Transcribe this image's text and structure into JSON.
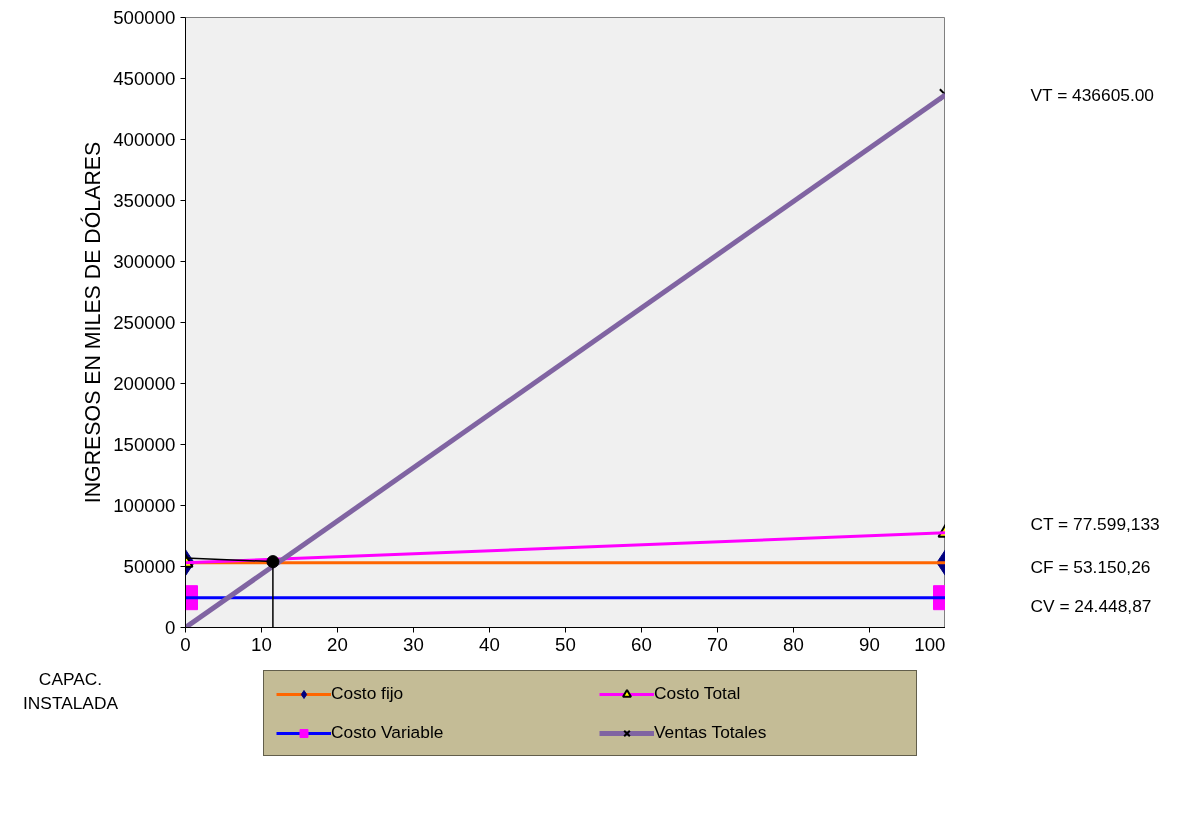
{
  "chart_data": {
    "type": "line",
    "xlabel": "CAPAC. INSTALADA",
    "ylabel": "INGRESOS EN MILES DE DÓLARES",
    "xlim": [
      0,
      100
    ],
    "xticks": [
      0,
      10,
      20,
      30,
      40,
      50,
      60,
      70,
      80,
      90,
      100
    ],
    "ylim": [
      0,
      500000
    ],
    "yticks": [
      0,
      50000,
      100000,
      150000,
      200000,
      250000,
      300000,
      350000,
      400000,
      450000,
      500000
    ],
    "grid": false,
    "legend": "bottom",
    "series": [
      {
        "name": "Costo fijo",
        "color": "#ff6600",
        "marker": "diamond",
        "colors": [
          "#000080",
          "#000080"
        ],
        "x": [
          0,
          100
        ],
        "values": [
          53150,
          53150
        ]
      },
      {
        "name": "Costo Variable",
        "color": "#0000ff",
        "marker": "square",
        "colors": [
          "#ff00ff",
          "#ff00ff"
        ],
        "x": [
          0,
          100
        ],
        "values": [
          24449,
          24449
        ]
      },
      {
        "name": "Costo Total",
        "color": "#ff00ff",
        "marker": "triangle",
        "colors": [
          "#ffff00",
          "#ffff00"
        ],
        "x": [
          0,
          100
        ],
        "values": [
          53150,
          77599
        ]
      },
      {
        "name": "Ventas Totales",
        "color": "#8064a2",
        "marker": "cross",
        "colors": [
          "#000000",
          "#000000"
        ],
        "x": [
          0,
          100
        ],
        "values": [
          0,
          436605
        ]
      },
      {
        "color": "#000000",
        "marker": "none",
        "x": [
          0,
          11.5,
          11.5
        ],
        "values": [
          57000,
          54000,
          0
        ]
      },
      {
        "type": "scatter",
        "color": "#000000",
        "marker": "circle",
        "x": [
          11.5
        ],
        "values": [
          54000
        ]
      }
    ],
    "annotations": [
      "VT = 436605.00",
      "CT = 77.599,133",
      "CF = 53.150,26",
      "CV = 24.448,87"
    ]
  }
}
